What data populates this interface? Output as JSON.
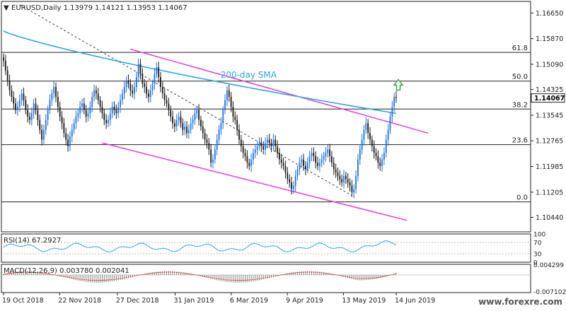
{
  "header": {
    "symbol_line": "EURUSD,Daily  1.13979 1.14121 1.13953 1.14067"
  },
  "watermark": "www.forexre.com",
  "chart_data": [
    {
      "type": "candlestick",
      "name": "price",
      "ylim": [
        1.1,
        1.17
      ],
      "y_ticks": [
        1.1665,
        1.1587,
        1.1509,
        1.14325,
        1.13545,
        1.12765,
        1.11985,
        1.11205,
        1.1044
      ],
      "current_price": {
        "label": "1.14067",
        "value": 1.14067
      },
      "x_ticks": [
        "19 Oct 2018",
        "22 Nov 2018",
        "27 Dec 2018",
        "31 Jan 2019",
        "6 Mar 2019",
        "9 Apr 2019",
        "13 May 2019",
        "14 Jun 2019"
      ],
      "x_tick_days": [
        0,
        34,
        69,
        104,
        138,
        172,
        206,
        238
      ],
      "closes": [
        1.152,
        1.149,
        1.146,
        1.143,
        1.141,
        1.139,
        1.137,
        1.138,
        1.14,
        1.142,
        1.14,
        1.137,
        1.135,
        1.134,
        1.136,
        1.139,
        1.137,
        1.134,
        1.131,
        1.128,
        1.131,
        1.134,
        1.137,
        1.14,
        1.142,
        1.144,
        1.141,
        1.138,
        1.135,
        1.133,
        1.13,
        1.128,
        1.126,
        1.129,
        1.131,
        1.133,
        1.135,
        1.136,
        1.138,
        1.139,
        1.137,
        1.135,
        1.136,
        1.138,
        1.141,
        1.143,
        1.142,
        1.14,
        1.138,
        1.136,
        1.134,
        1.133,
        1.134,
        1.136,
        1.138,
        1.137,
        1.136,
        1.138,
        1.14,
        1.142,
        1.144,
        1.146,
        1.145,
        1.143,
        1.142,
        1.144,
        1.147,
        1.151,
        1.148,
        1.145,
        1.144,
        1.142,
        1.141,
        1.143,
        1.145,
        1.148,
        1.15,
        1.147,
        1.144,
        1.142,
        1.14,
        1.139,
        1.137,
        1.135,
        1.133,
        1.132,
        1.134,
        1.135,
        1.133,
        1.131,
        1.132,
        1.13,
        1.131,
        1.133,
        1.134,
        1.136,
        1.137,
        1.134,
        1.132,
        1.13,
        1.128,
        1.127,
        1.125,
        1.121,
        1.122,
        1.125,
        1.128,
        1.131,
        1.133,
        1.137,
        1.14,
        1.143,
        1.141,
        1.138,
        1.135,
        1.134,
        1.131,
        1.128,
        1.126,
        1.124,
        1.123,
        1.121,
        1.12,
        1.122,
        1.124,
        1.125,
        1.126,
        1.127,
        1.126,
        1.125,
        1.127,
        1.128,
        1.127,
        1.126,
        1.128,
        1.126,
        1.124,
        1.122,
        1.121,
        1.12,
        1.118,
        1.116,
        1.115,
        1.113,
        1.114,
        1.117,
        1.119,
        1.121,
        1.122,
        1.12,
        1.119,
        1.121,
        1.123,
        1.124,
        1.123,
        1.121,
        1.12,
        1.121,
        1.122,
        1.123,
        1.124,
        1.125,
        1.123,
        1.121,
        1.119,
        1.118,
        1.117,
        1.116,
        1.115,
        1.117,
        1.116,
        1.115,
        1.114,
        1.112,
        1.113,
        1.117,
        1.122,
        1.125,
        1.128,
        1.131,
        1.133,
        1.13,
        1.128,
        1.126,
        1.124,
        1.123,
        1.121,
        1.12,
        1.122,
        1.124,
        1.128,
        1.131,
        1.135,
        1.138,
        1.141,
        1.1407
      ],
      "series": [
        {
          "name": "200-day SMA",
          "color": "#2aa8e0"
        }
      ],
      "channel_color": "#e03ee0",
      "trendline_color": "#444444",
      "bull_color": "#1a73e8",
      "bear_color": "#1a1a1a",
      "fibonacci": [
        {
          "label": "61.8",
          "value": 1.1545
        },
        {
          "label": "50.0",
          "value": 1.1458
        },
        {
          "label": "38.2",
          "value": 1.1373
        },
        {
          "label": "23.6",
          "value": 1.1265
        },
        {
          "label": "0.0",
          "value": 1.1091
        }
      ],
      "annotations": [
        {
          "text": "200-day SMA",
          "x_day": 137,
          "y": 1.1468,
          "color": "#2aa8e0"
        }
      ]
    },
    {
      "type": "line",
      "name": "rsi",
      "label": "RSI(14) 67.2927",
      "ylim": [
        0,
        100
      ],
      "y_ticks": [
        "100",
        "70",
        "30",
        "0"
      ],
      "y_tick_values": [
        100,
        70,
        30,
        0
      ],
      "color": "#2aa8e0"
    },
    {
      "type": "bar",
      "name": "macd",
      "label": "MACD(12,26,9) 0.003780 0.002041",
      "ylim": [
        -0.0075,
        0.0045
      ],
      "y_ticks": [
        "0.004299",
        "-0.007102"
      ],
      "y_tick_values": [
        0.004299,
        -0.007102
      ],
      "signal_color": "#e03030"
    }
  ]
}
